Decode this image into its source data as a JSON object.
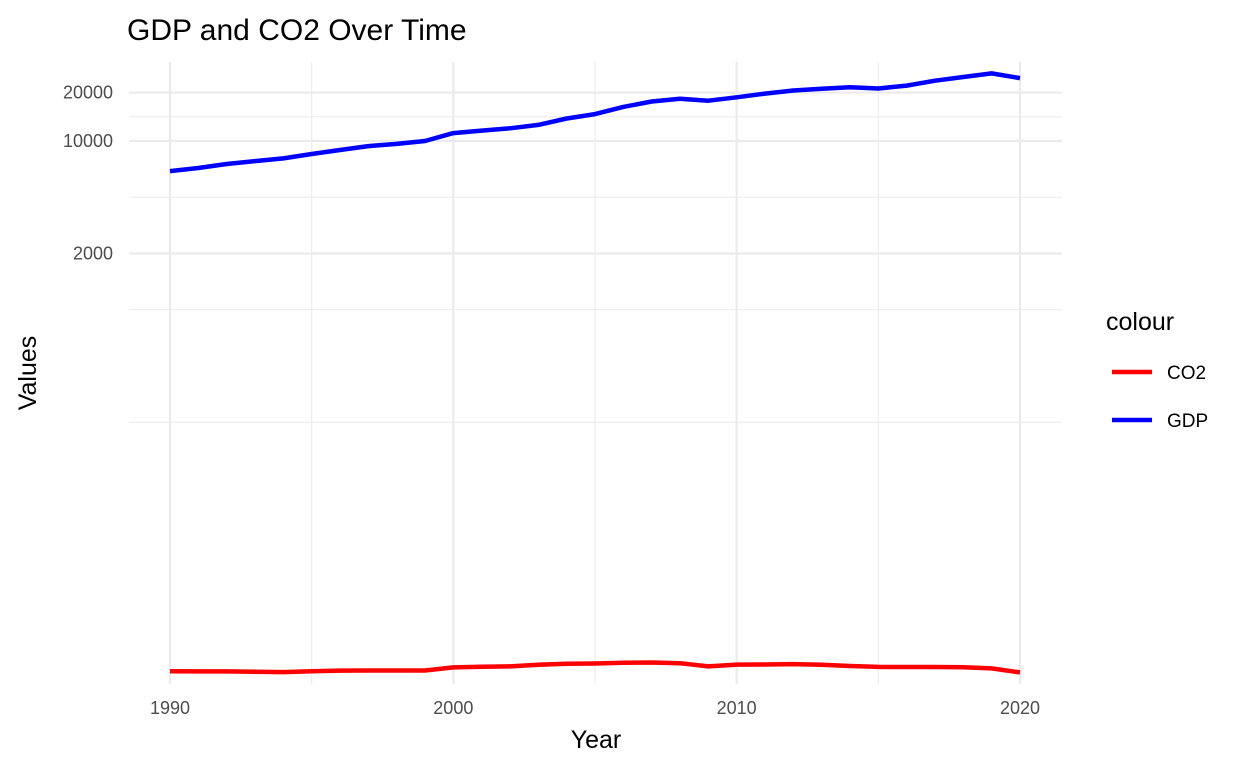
{
  "chart_data": {
    "type": "line",
    "title": "GDP and CO2 Over Time",
    "xlabel": "Year",
    "ylabel": "Values",
    "y_scale": "log10",
    "grid": true,
    "xlim": [
      1990,
      2020
    ],
    "x_ticks": [
      1990,
      2000,
      2010,
      2020
    ],
    "x_tick_labels": [
      "1990",
      "2000",
      "2010",
      "2020"
    ],
    "y_ticks": [
      2000,
      10000,
      20000
    ],
    "y_tick_labels": [
      "2000",
      "10000",
      "20000"
    ],
    "legend": {
      "title": "colour",
      "placement": "right"
    },
    "x": [
      1990,
      1991,
      1992,
      1993,
      1994,
      1995,
      1996,
      1997,
      1998,
      1999,
      2000,
      2001,
      2002,
      2003,
      2004,
      2005,
      2006,
      2007,
      2008,
      2009,
      2010,
      2011,
      2012,
      2013,
      2014,
      2015,
      2016,
      2017,
      2018,
      2019,
      2020
    ],
    "series": [
      {
        "name": "CO2",
        "color": "#ff0000",
        "values": [
          5.07,
          5.06,
          5.06,
          5.03,
          5.01,
          5.07,
          5.12,
          5.13,
          5.13,
          5.13,
          5.36,
          5.41,
          5.44,
          5.57,
          5.64,
          5.67,
          5.73,
          5.75,
          5.69,
          5.44,
          5.58,
          5.59,
          5.62,
          5.57,
          5.47,
          5.4,
          5.39,
          5.39,
          5.37,
          5.28,
          4.99
        ]
      },
      {
        "name": "GDP",
        "color": "#0000ff",
        "values": [
          6500,
          6800,
          7200,
          7500,
          7800,
          8300,
          8800,
          9300,
          9600,
          10000,
          11200,
          11600,
          12000,
          12600,
          13800,
          14700,
          16300,
          17600,
          18300,
          17800,
          18700,
          19700,
          20600,
          21100,
          21600,
          21200,
          22100,
          23700,
          25000,
          26300,
          24600
        ]
      }
    ]
  }
}
